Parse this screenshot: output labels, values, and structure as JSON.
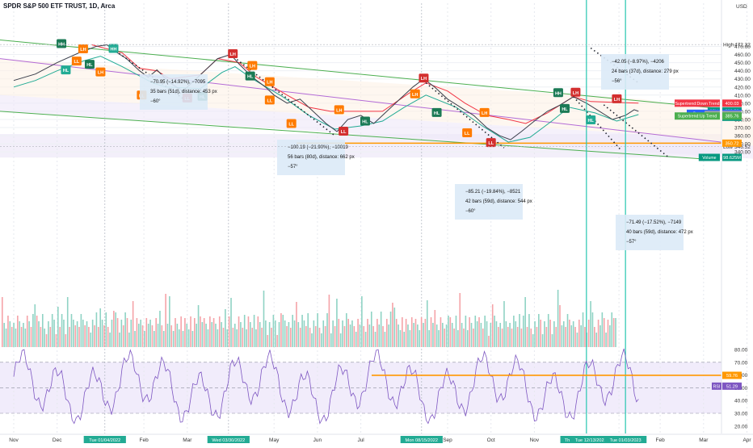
{
  "header": {
    "title": "SPDR S&P 500 ETF TRUST, 1D, Arca",
    "currency": "USD"
  },
  "chart_data": {
    "type": "line",
    "title": "SPDR S&P 500 ETF TRUST, 1D, Arca",
    "ylim": [
      330,
      475
    ],
    "price_ticks": [
      470,
      460,
      450,
      440,
      430,
      420,
      410,
      400,
      390,
      380,
      370,
      360,
      350,
      340
    ],
    "price_tick_labels": [
      "470.00",
      "460.00",
      "450.00",
      "440.00",
      "430.00",
      "420.00",
      "410.00",
      "400.00",
      "390.00",
      "380.00",
      "370.00",
      "360.00",
      "350.00",
      "340.00"
    ],
    "high": {
      "label": "High",
      "value": "472.32"
    },
    "low": {
      "label": "Low",
      "value": "346.52"
    },
    "price_labels": [
      {
        "name": "Supertrend Down Trend",
        "text": "Supertrend:Down Trend",
        "value": "400.03",
        "color": "#f23645"
      },
      {
        "name": "SPY",
        "text": "SPY",
        "value": "390.56",
        "sub": "05:06:47",
        "color": "#089981"
      },
      {
        "name": "Supertrend",
        "text": "Supertrend",
        "value": "390.05",
        "color": "#2962ff"
      },
      {
        "name": "VWAP",
        "text": "VWAP",
        "value": "390.05",
        "color": "#9aa0a6"
      },
      {
        "name": "Supertrend Up Trend",
        "text": "Supertrend:Up Trend",
        "value": "385.76",
        "color": "#4caf50"
      },
      {
        "name": "horizontal level",
        "value": "350.72",
        "color": "#ff9800"
      },
      {
        "name": "Volume",
        "text": "Volume",
        "value": "98.625M",
        "color": "#089981"
      }
    ],
    "measurements": [
      {
        "lines": [
          "−70.95 (−14.92%), −7095",
          "35 bars (51d), distance: 453 px",
          "−60°"
        ]
      },
      {
        "lines": [
          "−100.19 (−21.90%), −10019",
          "56 bars (80d), distance: 662 px",
          "−57°"
        ]
      },
      {
        "lines": [
          "−85.21 (−19.84%), −8521",
          "42 bars (59d), distance: 544 px",
          "−60°"
        ]
      },
      {
        "lines": [
          "−71.49 (−17.52%), −7149",
          "40 bars (59d), distance: 472 px",
          "−57°"
        ]
      },
      {
        "lines": [
          "−42.05 (−8.97%), −4206",
          "24 bars (37d), distance: 279 px",
          "−56°"
        ]
      }
    ],
    "swing_labels": [
      {
        "text": "HH",
        "price": 473.0,
        "color": "#1b7a55"
      },
      {
        "text": "HH",
        "price": 467.0,
        "color": "#22ab94"
      },
      {
        "text": "LH",
        "price": 466.5,
        "color": "#ff7b00"
      },
      {
        "text": "HL",
        "price": 447.5,
        "color": "#1b7a55"
      },
      {
        "text": "HL",
        "price": 440.5,
        "color": "#22ab94"
      },
      {
        "text": "LL",
        "price": 451.5,
        "color": "#ff7b00"
      },
      {
        "text": "LH",
        "price": 438.0,
        "color": "#ff7b00"
      },
      {
        "text": "LL",
        "price": 409.5,
        "color": "#ff7b00"
      },
      {
        "text": "LL",
        "price": 406.0,
        "color": "#d32f2f"
      },
      {
        "text": "HL",
        "price": 408.0,
        "color": "#1b7a55"
      },
      {
        "text": "LH",
        "price": 460.5,
        "color": "#d32f2f"
      },
      {
        "text": "LH",
        "price": 446.0,
        "color": "#ff7b00"
      },
      {
        "text": "HL",
        "price": 433.0,
        "color": "#1b7a55"
      },
      {
        "text": "LH",
        "price": 426.0,
        "color": "#ff7b00"
      },
      {
        "text": "LL",
        "price": 403.5,
        "color": "#ff7b00"
      },
      {
        "text": "LH",
        "price": 391.5,
        "color": "#ff7b00"
      },
      {
        "text": "LL",
        "price": 374.5,
        "color": "#ff7b00"
      },
      {
        "text": "LL",
        "price": 365.0,
        "color": "#d32f2f"
      },
      {
        "text": "HL",
        "price": 377.5,
        "color": "#1b7a55"
      },
      {
        "text": "LH",
        "price": 430.5,
        "color": "#d32f2f"
      },
      {
        "text": "LH",
        "price": 411.0,
        "color": "#ff7b00"
      },
      {
        "text": "HL",
        "price": 388.0,
        "color": "#1b7a55"
      },
      {
        "text": "LH",
        "price": 388.0,
        "color": "#ff7b00"
      },
      {
        "text": "LL",
        "price": 363.0,
        "color": "#ff7b00"
      },
      {
        "text": "LL",
        "price": 351.0,
        "color": "#d32f2f"
      },
      {
        "text": "HH",
        "price": 412.5,
        "color": "#1b7a55"
      },
      {
        "text": "LH",
        "price": 413.0,
        "color": "#d32f2f"
      },
      {
        "text": "HL",
        "price": 393.0,
        "color": "#1b7a55"
      },
      {
        "text": "HL",
        "price": 379.0,
        "color": "#22ab94"
      },
      {
        "text": "LH",
        "price": 405.0,
        "color": "#d32f2f"
      }
    ],
    "volume_label": "Volume",
    "rsi": {
      "label": "RSI",
      "value": "51.29",
      "level_label": "59.76",
      "ylim": [
        20,
        90
      ],
      "ticks": [
        80,
        70,
        60,
        50,
        40,
        30,
        20
      ],
      "tick_labels": [
        "80.00",
        "70.00",
        "60.00",
        "50.00",
        "40.00",
        "30.00",
        "20.00"
      ]
    },
    "x_axis_ticks": [
      {
        "label": "Nov",
        "x": 0.0
      },
      {
        "label": "Dec",
        "x": 1.0
      },
      {
        "label": "Tue 01/04/2022",
        "x": 2.1,
        "highlight": "#22ab94"
      },
      {
        "label": "Feb",
        "x": 3.0
      },
      {
        "label": "Mar",
        "x": 4.0
      },
      {
        "label": "Wed 03/30/2022",
        "x": 4.95,
        "highlight": "#22ab94"
      },
      {
        "label": "May",
        "x": 6.0
      },
      {
        "label": "Jun",
        "x": 7.0
      },
      {
        "label": "Jul",
        "x": 8.0
      },
      {
        "label": "Mon 08/15/2022",
        "x": 9.4,
        "highlight": "#22ab94"
      },
      {
        "label": "Sep",
        "x": 10.0
      },
      {
        "label": "Oct",
        "x": 11.0
      },
      {
        "label": "Nov",
        "x": 12.0
      },
      {
        "label": "Thu 12/1",
        "x": 12.9,
        "highlight": "#22ab94"
      },
      {
        "label": "Tue 12/13/2022",
        "x": 13.3,
        "highlight": "#22ab94"
      },
      {
        "label": "2023",
        "x": 13.95
      },
      {
        "label": "Tue 01/03/2023",
        "x": 14.1,
        "highlight": "#22ab94"
      },
      {
        "label": "Feb",
        "x": 14.9
      },
      {
        "label": "Mar",
        "x": 15.9
      },
      {
        "label": "Apr",
        "x": 16.9
      }
    ]
  }
}
